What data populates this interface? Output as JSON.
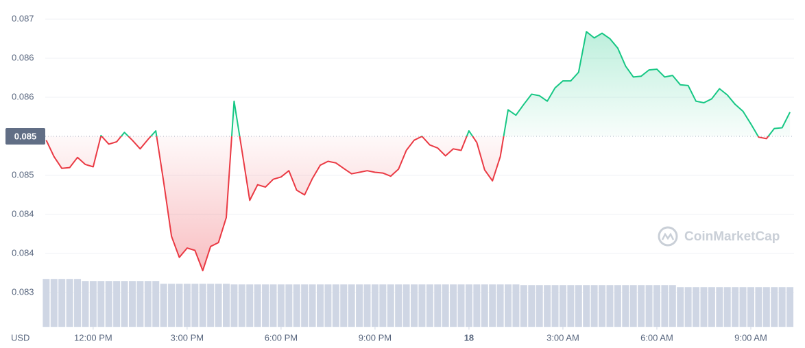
{
  "chart_data": {
    "type": "line",
    "currency": "USD",
    "watermark": "CoinMarketCap",
    "x": [
      10.5,
      10.75,
      11,
      11.25,
      11.5,
      11.75,
      12,
      12.25,
      12.5,
      12.75,
      13,
      13.25,
      13.5,
      13.75,
      14,
      14.25,
      14.5,
      14.75,
      15,
      15.25,
      15.5,
      15.75,
      16,
      16.25,
      16.5,
      16.75,
      17,
      17.25,
      17.5,
      17.75,
      18,
      18.25,
      18.5,
      18.75,
      19,
      19.25,
      19.5,
      19.75,
      20,
      20.25,
      20.5,
      20.75,
      21,
      21.25,
      21.5,
      21.75,
      22,
      22.25,
      22.5,
      22.75,
      23,
      23.25,
      23.5,
      23.75,
      24,
      24.25,
      24.5,
      24.75,
      25,
      25.25,
      25.5,
      25.75,
      26,
      26.25,
      26.5,
      26.75,
      27,
      27.25,
      27.5,
      27.75,
      28,
      28.25,
      28.5,
      28.75,
      29,
      29.25,
      29.5,
      29.75,
      30,
      30.25,
      30.5,
      30.75,
      31,
      31.25,
      31.5,
      31.75,
      32,
      32.25,
      32.5,
      32.75,
      33,
      33.25,
      33.5,
      33.75,
      34,
      34.25
    ],
    "values": [
      0.08545,
      0.08524,
      0.08509,
      0.0851,
      0.08523,
      0.08514,
      0.08511,
      0.08551,
      0.0854,
      0.08543,
      0.08555,
      0.08545,
      0.08534,
      0.08546,
      0.08557,
      0.08492,
      0.08422,
      0.08395,
      0.08407,
      0.08404,
      0.08378,
      0.08409,
      0.08414,
      0.08446,
      0.08595,
      0.08532,
      0.08468,
      0.08488,
      0.08485,
      0.08495,
      0.08498,
      0.08506,
      0.08481,
      0.08475,
      0.08496,
      0.08513,
      0.08518,
      0.08516,
      0.08509,
      0.08502,
      0.08504,
      0.08506,
      0.08504,
      0.08503,
      0.08499,
      0.08508,
      0.08532,
      0.08545,
      0.0855,
      0.08539,
      0.08535,
      0.08525,
      0.08534,
      0.08532,
      0.08557,
      0.08542,
      0.08507,
      0.08493,
      0.08524,
      0.08584,
      0.08577,
      0.08591,
      0.08604,
      0.08602,
      0.08595,
      0.08612,
      0.08621,
      0.08621,
      0.08632,
      0.08684,
      0.08676,
      0.08682,
      0.08675,
      0.08663,
      0.0864,
      0.08626,
      0.08627,
      0.08635,
      0.08636,
      0.08626,
      0.08628,
      0.08616,
      0.08615,
      0.08595,
      0.08593,
      0.08598,
      0.08611,
      0.08603,
      0.08591,
      0.08582,
      0.08566,
      0.08549,
      0.08547,
      0.0856,
      0.08561,
      0.08581
    ],
    "volume": [
      70,
      70,
      70,
      70,
      70,
      67,
      67,
      67,
      67,
      67,
      67,
      67,
      67,
      67,
      67,
      63,
      63,
      63,
      63,
      63,
      63,
      63,
      63,
      63,
      62,
      62,
      62,
      62,
      62,
      62,
      62,
      62,
      62,
      62,
      62,
      62,
      62,
      62,
      62,
      62,
      62,
      62,
      62,
      62,
      62,
      62,
      62,
      62,
      62,
      62,
      62,
      62,
      62,
      62,
      62,
      62,
      62,
      62,
      62,
      62,
      62,
      61,
      61,
      61,
      61,
      61,
      61,
      61,
      61,
      61,
      61,
      61,
      61,
      61,
      61,
      61,
      61,
      61,
      61,
      61,
      61,
      58,
      58,
      58,
      58,
      58,
      58,
      58,
      58,
      58,
      58,
      58,
      58,
      58,
      58,
      58
    ],
    "reference": {
      "value": 0.0855,
      "label": "0.085"
    },
    "up_color": "#16c784",
    "down_color": "#ea3943",
    "volume_color": "#cfd6e4",
    "xlim": [
      10.47,
      34.38
    ],
    "ylim": [
      0.08306,
      0.0872
    ],
    "xticks": [
      {
        "value": 12,
        "label": "12:00 PM"
      },
      {
        "value": 15,
        "label": "3:00 PM"
      },
      {
        "value": 18,
        "label": "6:00 PM"
      },
      {
        "value": 21,
        "label": "9:00 PM"
      },
      {
        "value": 24,
        "label": "18"
      },
      {
        "value": 27,
        "label": "3:00 AM"
      },
      {
        "value": 30,
        "label": "6:00 AM"
      },
      {
        "value": 33,
        "label": "9:00 AM"
      }
    ],
    "yticks": [
      {
        "value": 0.0835,
        "label": "0.083"
      },
      0.084,
      {
        "value": 0.0845,
        "label": "0.084"
      },
      0.085,
      0.086,
      {
        "value": 0.0865,
        "label": "0.086"
      },
      0.087
    ],
    "grid": true
  }
}
